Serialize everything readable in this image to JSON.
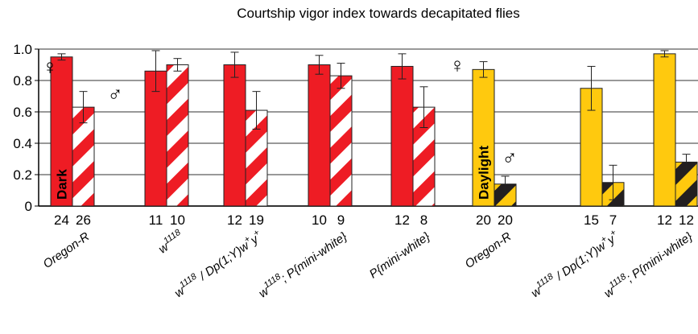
{
  "chart_data": {
    "type": "bar",
    "title": "Courtship vigor index towards decapitated flies",
    "ylim": [
      0,
      1
    ],
    "yticks": [
      0,
      0.2,
      0.4,
      0.6,
      0.8,
      {
        "value": 1,
        "label": "1.0"
      }
    ],
    "grid": true,
    "categories": [
      [
        {
          "text": "Oregon-R"
        }
      ],
      [
        {
          "text": "w"
        },
        {
          "sup": "1118"
        }
      ],
      [
        {
          "text": "w"
        },
        {
          "sup": "1118"
        },
        {
          "text": " / Dp(1;Y)w"
        },
        {
          "sup": "+"
        },
        {
          "text": "y"
        },
        {
          "sup": "+"
        }
      ],
      [
        {
          "text": "w"
        },
        {
          "sup": "1118"
        },
        {
          "text": "; P{mini-white}"
        }
      ],
      [
        {
          "text": "P{mini-white}"
        }
      ],
      [
        {
          "text": "Oregon-R"
        }
      ],
      [
        {
          "text": "w"
        },
        {
          "sup": "1118"
        },
        {
          "text": " / Dp(1;Y)w"
        },
        {
          "sup": "+"
        },
        {
          "text": "y"
        },
        {
          "sup": "+"
        }
      ],
      [
        {
          "text": "w"
        },
        {
          "sup": "1118"
        },
        {
          "text": "; P{mini-white}"
        }
      ]
    ],
    "colors": [
      "#ee1c24",
      "#ee1c24",
      "#ee1c24",
      "#ee1c24",
      "#ee1c24",
      "#ffc90e",
      "#ffc90e",
      "#ffc90e"
    ],
    "stripe_colors": [
      "#ffffff",
      "#ffffff",
      "#ffffff",
      "#ffffff",
      "#ffffff",
      "#231f20",
      "#231f20",
      "#231f20"
    ],
    "condition_labels": [
      "Dark",
      "Daylight"
    ],
    "series": [
      {
        "name": "♀",
        "values": [
          0.95,
          0.86,
          0.9,
          0.9,
          0.89,
          0.87,
          0.75,
          0.97
        ],
        "errors": [
          0.02,
          0.13,
          0.08,
          0.06,
          0.08,
          0.05,
          0.14,
          0.02
        ],
        "n": [
          24,
          11,
          12,
          10,
          12,
          20,
          15,
          12
        ]
      },
      {
        "name": "♂",
        "stripes": true,
        "values": [
          0.63,
          0.9,
          0.61,
          0.83,
          0.63,
          0.14,
          0.15,
          0.28
        ],
        "errors": [
          0.1,
          0.04,
          0.12,
          0.08,
          0.13,
          0.05,
          0.11,
          0.05
        ],
        "n": [
          26,
          10,
          19,
          9,
          8,
          20,
          7,
          12
        ]
      }
    ]
  }
}
